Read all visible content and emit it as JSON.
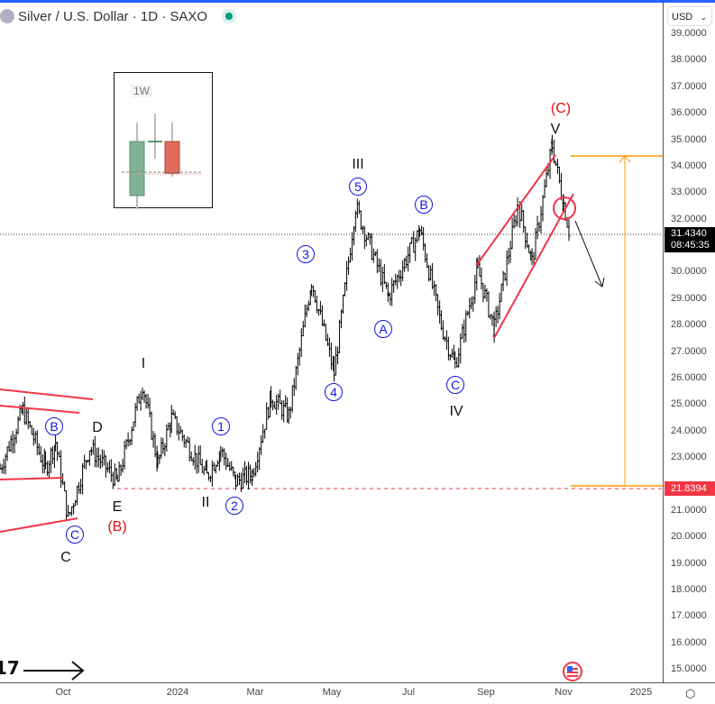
{
  "header": {
    "title": "Silver / U.S. Dollar · 1D · SAXO",
    "status_color": "#089981"
  },
  "currency_selector": {
    "value": "USD"
  },
  "price_axis": {
    "ticks": [
      "39.0000",
      "38.0000",
      "37.0000",
      "36.0000",
      "35.0000",
      "34.0000",
      "33.0000",
      "32.0000",
      "30.0000",
      "29.0000",
      "28.0000",
      "27.0000",
      "26.0000",
      "25.0000",
      "24.0000",
      "23.0000",
      "21.0000",
      "20.0000",
      "19.0000",
      "18.0000",
      "17.0000",
      "16.0000",
      "15.0000"
    ],
    "last_price": "31.4340",
    "countdown": "08:45:35",
    "level_label": "21.8394"
  },
  "time_axis": {
    "labels": [
      "Oct",
      "2024",
      "Mar",
      "May",
      "Jul",
      "Sep",
      "Nov",
      "2025"
    ]
  },
  "inset": {
    "timeframe": "1W"
  },
  "waves": {
    "circled": [
      "B",
      "C",
      "1",
      "2",
      "3",
      "4",
      "5",
      "A",
      "B",
      "C"
    ],
    "plain": [
      "D",
      "C",
      "E",
      "I",
      "II",
      "III",
      "IV",
      "V"
    ],
    "red": [
      "(B)",
      "(C)"
    ]
  },
  "colors": {
    "up_bar": "#000000",
    "channel": "#f23645",
    "wave_circle": "#1515e0",
    "target": "#ff9800",
    "price_label": "#000000",
    "level_label": "#f23645"
  },
  "chart_data": {
    "type": "ohlc-bars",
    "symbol": "XAGUSD",
    "ylim": [
      15,
      39
    ],
    "price_path": [
      [
        "2023-08-12",
        22.6
      ],
      [
        "2023-08-30",
        24.8
      ],
      [
        "2023-09-17",
        22.6
      ],
      [
        "2023-09-25",
        23.6
      ],
      [
        "2023-10-05",
        20.7
      ],
      [
        "2023-10-22",
        23.4
      ],
      [
        "2023-11-13",
        22.1
      ],
      [
        "2023-12-03",
        25.8
      ],
      [
        "2023-12-15",
        22.8
      ],
      [
        "2023-12-26",
        24.5
      ],
      [
        "2024-01-23",
        22.3
      ],
      [
        "2024-02-03",
        23.3
      ],
      [
        "2024-02-15",
        22.1
      ],
      [
        "2024-02-28",
        22.4
      ],
      [
        "2024-03-14",
        25.3
      ],
      [
        "2024-03-28",
        24.6
      ],
      [
        "2024-04-15",
        29.7
      ],
      [
        "2024-05-03",
        26.2
      ],
      [
        "2024-05-20",
        32.5
      ],
      [
        "2024-06-15",
        29.1
      ],
      [
        "2024-07-10",
        31.6
      ],
      [
        "2024-07-27",
        28.0
      ],
      [
        "2024-08-07",
        26.5
      ],
      [
        "2024-08-25",
        30.1
      ],
      [
        "2024-09-07",
        27.9
      ],
      [
        "2024-09-26",
        32.6
      ],
      [
        "2024-10-07",
        30.4
      ],
      [
        "2024-10-23",
        34.8
      ],
      [
        "2024-11-01",
        32.6
      ],
      [
        "2024-11-06",
        31.434
      ]
    ],
    "levels": {
      "support": 21.8394,
      "target_top": 34.45
    }
  }
}
